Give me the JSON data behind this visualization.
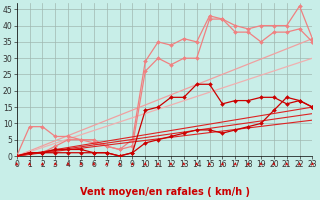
{
  "xlabel": "Vent moyen/en rafales ( km/h )",
  "bg_color": "#c8eee8",
  "grid_color": "#a0b8b0",
  "ylim": [
    0,
    47
  ],
  "xlim": [
    0,
    23
  ],
  "yticks": [
    0,
    5,
    10,
    15,
    20,
    25,
    30,
    35,
    40,
    45
  ],
  "xticks": [
    0,
    1,
    2,
    3,
    4,
    5,
    6,
    7,
    8,
    9,
    10,
    11,
    12,
    13,
    14,
    15,
    16,
    17,
    18,
    19,
    20,
    21,
    22,
    23
  ],
  "lines": [
    {
      "x": [
        0,
        1,
        2,
        3,
        4,
        5,
        6,
        7,
        8,
        9,
        10,
        11,
        12,
        13,
        14,
        15,
        16,
        17,
        18,
        19,
        20,
        21,
        22,
        23
      ],
      "y": [
        0,
        9,
        9,
        6,
        6,
        5,
        5,
        3,
        2,
        5,
        29,
        35,
        34,
        36,
        35,
        43,
        42,
        40,
        39,
        40,
        40,
        40,
        46,
        36
      ],
      "color": "#f08080",
      "linewidth": 0.9,
      "marker": "D",
      "markersize": 2.0,
      "zorder": 4
    },
    {
      "x": [
        0,
        1,
        2,
        3,
        4,
        5,
        6,
        7,
        8,
        9,
        10,
        11,
        12,
        13,
        14,
        15,
        16,
        17,
        18,
        19,
        20,
        21,
        22,
        23
      ],
      "y": [
        0,
        1,
        1,
        3,
        5,
        5,
        4,
        3,
        2,
        3,
        26,
        30,
        28,
        30,
        30,
        42,
        42,
        38,
        38,
        35,
        38,
        38,
        39,
        35
      ],
      "color": "#f08080",
      "linewidth": 0.9,
      "marker": "D",
      "markersize": 2.0,
      "zorder": 4
    },
    {
      "x": [
        0,
        23
      ],
      "y": [
        0,
        36
      ],
      "color": "#f0a0a0",
      "linewidth": 0.9,
      "marker": null,
      "markersize": 0,
      "zorder": 3
    },
    {
      "x": [
        0,
        23
      ],
      "y": [
        0,
        30
      ],
      "color": "#f0b0b0",
      "linewidth": 0.9,
      "marker": null,
      "markersize": 0,
      "zorder": 3
    },
    {
      "x": [
        0,
        1,
        2,
        3,
        4,
        5,
        6,
        7,
        8,
        9,
        10,
        11,
        12,
        13,
        14,
        15,
        16,
        17,
        18,
        19,
        20,
        21,
        22,
        23
      ],
      "y": [
        0,
        1,
        1,
        1,
        1,
        1,
        1,
        1,
        0,
        1,
        14,
        15,
        18,
        18,
        22,
        22,
        16,
        17,
        17,
        18,
        18,
        16,
        17,
        15
      ],
      "color": "#cc0000",
      "linewidth": 0.9,
      "marker": "D",
      "markersize": 2.0,
      "zorder": 6
    },
    {
      "x": [
        0,
        1,
        2,
        3,
        4,
        5,
        6,
        7,
        8,
        9,
        10,
        11,
        12,
        13,
        14,
        15,
        16,
        17,
        18,
        19,
        20,
        21,
        22,
        23
      ],
      "y": [
        0,
        1,
        1,
        2,
        2,
        2,
        1,
        1,
        0,
        1,
        4,
        5,
        6,
        7,
        8,
        8,
        7,
        8,
        9,
        10,
        14,
        18,
        17,
        15
      ],
      "color": "#cc0000",
      "linewidth": 0.9,
      "marker": "D",
      "markersize": 2.0,
      "zorder": 6
    },
    {
      "x": [
        0,
        23
      ],
      "y": [
        0,
        15
      ],
      "color": "#dd2222",
      "linewidth": 0.8,
      "marker": null,
      "markersize": 0,
      "zorder": 5
    },
    {
      "x": [
        0,
        23
      ],
      "y": [
        0,
        13
      ],
      "color": "#dd2222",
      "linewidth": 0.8,
      "marker": null,
      "markersize": 0,
      "zorder": 5
    },
    {
      "x": [
        0,
        23
      ],
      "y": [
        0,
        11
      ],
      "color": "#dd2222",
      "linewidth": 0.8,
      "marker": null,
      "markersize": 0,
      "zorder": 5
    }
  ],
  "arrow_color": "#cc0000",
  "tick_fontsize": 5.5,
  "label_fontsize": 7,
  "ylabel_fontsize": 6
}
